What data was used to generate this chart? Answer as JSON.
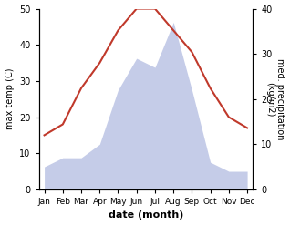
{
  "months": [
    "Jan",
    "Feb",
    "Mar",
    "Apr",
    "May",
    "Jun",
    "Jul",
    "Aug",
    "Sep",
    "Oct",
    "Nov",
    "Dec"
  ],
  "temperature": [
    15,
    18,
    28,
    35,
    44,
    50,
    50,
    44,
    38,
    28,
    20,
    17
  ],
  "precipitation": [
    5,
    7,
    7,
    10,
    22,
    29,
    27,
    37,
    22,
    6,
    4,
    4
  ],
  "temp_color": "#c0392b",
  "precip_fill_color": "#c5cce8",
  "precip_edge_color": "#aab4d8",
  "ylabel_left": "max temp (C)",
  "ylabel_right": "med. precipitation\n(kg/m2)",
  "xlabel": "date (month)",
  "ylim_left": [
    0,
    50
  ],
  "ylim_right": [
    0,
    40
  ],
  "yticks_left": [
    0,
    10,
    20,
    30,
    40,
    50
  ],
  "yticks_right": [
    0,
    10,
    20,
    30,
    40
  ]
}
